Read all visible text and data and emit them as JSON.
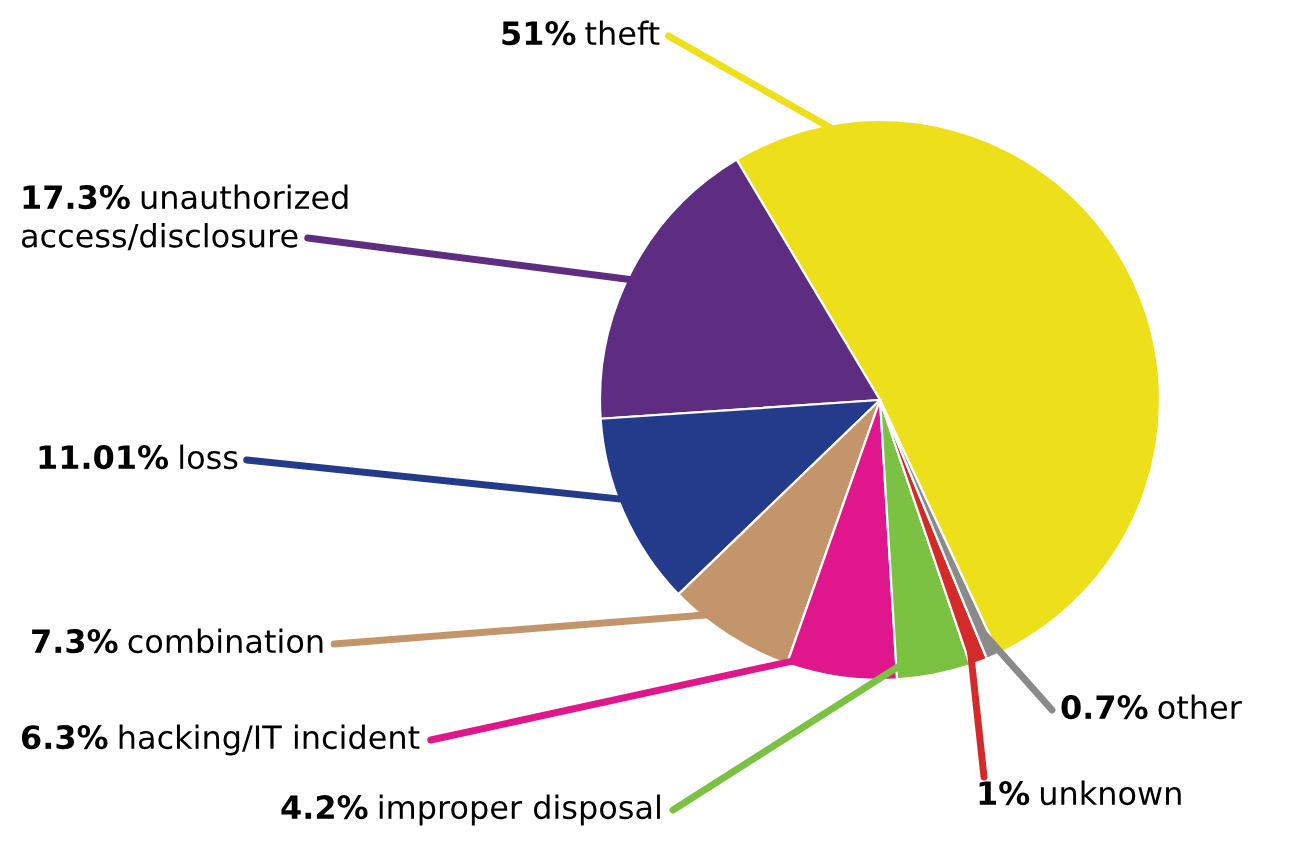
{
  "chart_data": {
    "type": "pie",
    "categories": [
      "theft",
      "unauthorized\naccess/disclosure",
      "loss",
      "combination",
      "hacking/IT incident",
      "improper disposal",
      "unknown",
      "other"
    ],
    "values": [
      51,
      17.3,
      11.01,
      7.3,
      6.3,
      4.2,
      1,
      0.7
    ],
    "value_labels": [
      "51%",
      "17.3%",
      "11.01%",
      "7.3%",
      "6.3%",
      "4.2%",
      "1%",
      "0.7%"
    ],
    "colors": [
      "#ede01a",
      "#5e2d82",
      "#243a8a",
      "#c4956a",
      "#e0178c",
      "#7cc242",
      "#d42a2a",
      "#8a8a8a"
    ],
    "legend": false
  }
}
